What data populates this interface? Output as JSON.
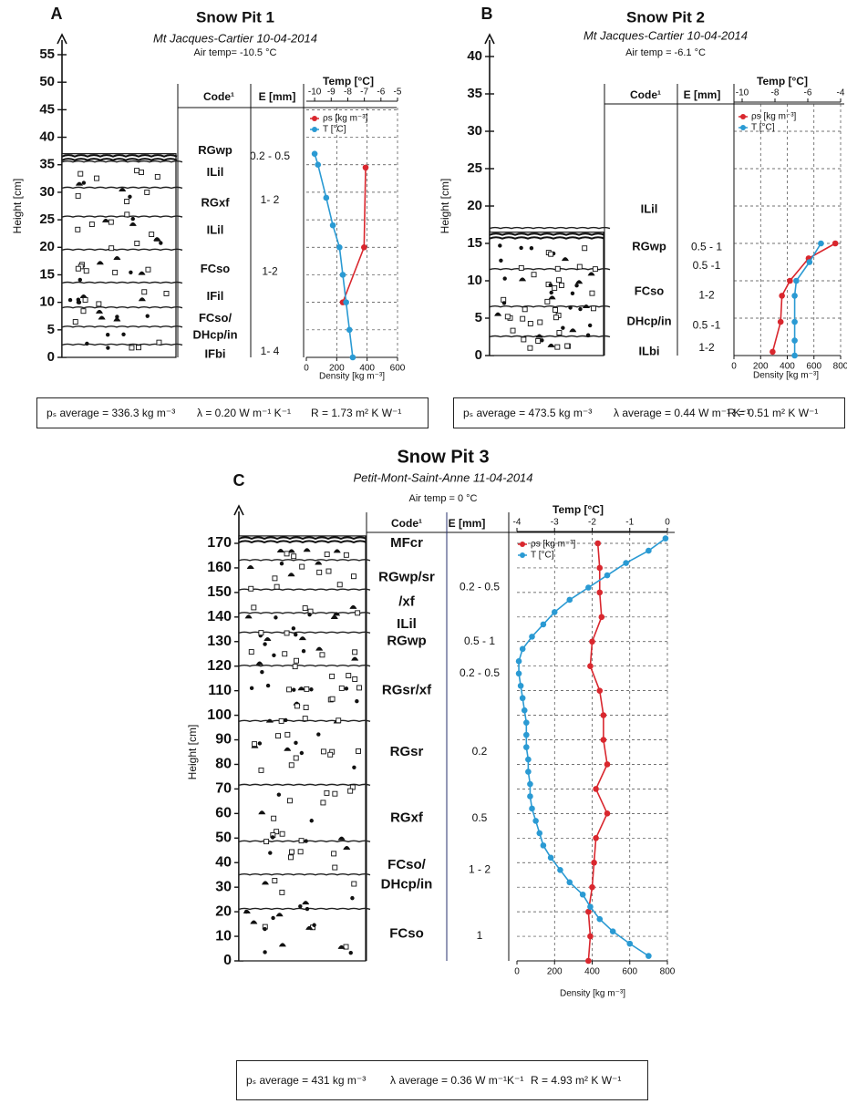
{
  "panels": [
    {
      "letter": "A",
      "title": "Snow Pit 1",
      "location": "Mt Jacques-Cartier 10-04-2014",
      "air_temp": "Air temp= -10.5 °C",
      "summary": {
        "density": "pₛ average = 336.3 kg m⁻³",
        "conductivity": "λ = 0.20 W m⁻¹ K⁻¹",
        "resistance": "R = 1.73 m² K W⁻¹"
      }
    },
    {
      "letter": "B",
      "title": "Snow Pit 2",
      "location": "Mt Jacques-Cartier 10-04-2014",
      "air_temp": "Air temp = -6.1 °C",
      "summary": {
        "density": "pₛ average = 473.5 kg m⁻³",
        "conductivity": "λ average = 0.44 W m⁻¹ K⁻¹",
        "resistance": "R = 0.51 m² K W⁻¹"
      }
    },
    {
      "letter": "C",
      "title": "Snow Pit 3",
      "location": "Petit-Mont-Saint-Anne 11-04-2014",
      "air_temp": "Air temp = 0 °C",
      "summary": {
        "density": "pₛ average = 431 kg m⁻³",
        "conductivity": "λ average = 0.36 W m⁻¹K⁻¹",
        "resistance": "R = 4.93 m² K W⁻¹"
      }
    }
  ],
  "column_headers": {
    "code": "Code¹",
    "e": "E [mm]",
    "temp": "Temp [°C]"
  },
  "axis_labels": {
    "height": "Height [cm]",
    "density": "Density [kg m⁻³]"
  },
  "legend": {
    "density": "ρs [kg m⁻³]",
    "temp": "T [°C]"
  },
  "colors": {
    "density": "#d9272e",
    "temp": "#2a9ad3",
    "text": "#111111"
  },
  "chart_data": [
    {
      "type": "line",
      "title": "Snow Pit 1",
      "ylabel": "Height [cm]",
      "ylim": [
        0,
        55
      ],
      "yticks": [
        0,
        5,
        10,
        15,
        20,
        25,
        30,
        35,
        40,
        45,
        50,
        55
      ],
      "snow_top": 37,
      "density_axis": {
        "label": "Density [kg m⁻³]",
        "lim": [
          0,
          600
        ],
        "ticks": [
          0,
          200,
          400,
          600
        ]
      },
      "temp_axis": {
        "label": "Temp [°C]",
        "lim": [
          -10.5,
          -5
        ],
        "ticks": [
          -10,
          -9,
          -8,
          -7,
          -6,
          -5
        ]
      },
      "layers": [
        {
          "code": "RGwp",
          "code_h": 37.5,
          "e": "0.2 - 0.5",
          "e_h": 36.5
        },
        {
          "code": "ILil",
          "code_h": 33.5
        },
        {
          "code": "RGxf",
          "code_h": 28,
          "e": "1- 2",
          "e_h": 28.5
        },
        {
          "code": "ILil",
          "code_h": 23
        },
        {
          "code": "FCso",
          "code_h": 16,
          "e": "1-2",
          "e_h": 15.5
        },
        {
          "code": "IFil",
          "code_h": 11
        },
        {
          "code": "FCso/",
          "code_h": 7
        },
        {
          "code": "DHcp/in",
          "code_h": 4
        },
        {
          "code": "IFbi",
          "code_h": 0.5,
          "e": "1- 4",
          "e_h": 1
        }
      ],
      "series": [
        {
          "name": "ρs [kg m⁻³]",
          "axis": "density",
          "h": [
            34.5,
            20,
            10
          ],
          "v": [
            390,
            380,
            240
          ]
        },
        {
          "name": "T [°C]",
          "axis": "temp",
          "h": [
            37,
            35,
            29,
            24,
            20,
            15,
            10,
            5,
            0
          ],
          "v": [
            -10,
            -9.8,
            -9.3,
            -8.9,
            -8.5,
            -8.3,
            -8.1,
            -7.9,
            -7.7
          ]
        }
      ]
    },
    {
      "type": "line",
      "title": "Snow Pit 2",
      "ylabel": "Height [cm]",
      "ylim": [
        0,
        40
      ],
      "yticks": [
        0,
        5,
        10,
        15,
        20,
        25,
        30,
        35,
        40
      ],
      "snow_top": 16.5,
      "density_axis": {
        "label": "Density [kg m⁻³]",
        "lim": [
          0,
          800
        ],
        "ticks": [
          0,
          200,
          400,
          600,
          800
        ]
      },
      "temp_axis": {
        "label": "Temp [°C]",
        "lim": [
          -10.5,
          -4
        ],
        "ticks": [
          -10,
          -8,
          -6,
          -4
        ]
      },
      "layers": [
        {
          "code": "ILil",
          "code_h": 19.5
        },
        {
          "code": "RGwp",
          "code_h": 14.5,
          "e": "0.5 - 1",
          "e_h": 14.5
        },
        {
          "code": "FCso",
          "code_h": 8.5,
          "e": "0.5 -1",
          "e_h": 12
        },
        {
          "code": "DHcp/in",
          "code_h": 4.5,
          "e": "1-2",
          "e_h": 8
        },
        {
          "code": "ILbi",
          "code_h": 0.5,
          "e": "0.5 -1",
          "e_h": 4,
          "e2": "1-2",
          "e2_h": 1
        }
      ],
      "series": [
        {
          "name": "ρs [kg m⁻³]",
          "axis": "density",
          "h": [
            15,
            13,
            10,
            8,
            4.5,
            0.5
          ],
          "v": [
            760,
            560,
            420,
            360,
            350,
            290
          ]
        },
        {
          "name": "T [°C]",
          "axis": "temp",
          "h": [
            15,
            12.5,
            10,
            8,
            4.5,
            2,
            0
          ],
          "v": [
            -5.2,
            -5.9,
            -6.7,
            -6.8,
            -6.8,
            -6.8,
            -6.8
          ]
        }
      ]
    },
    {
      "type": "line",
      "title": "Snow Pit 3",
      "ylabel": "Height [cm]",
      "ylim": [
        0,
        177
      ],
      "yticks": [
        0,
        10,
        20,
        30,
        40,
        50,
        60,
        70,
        80,
        90,
        100,
        110,
        120,
        130,
        140,
        150,
        160,
        170
      ],
      "snow_top": 173,
      "density_axis": {
        "label": "Density [kg m⁻³]",
        "lim": [
          0,
          800
        ],
        "ticks": [
          0,
          200,
          400,
          600,
          800
        ]
      },
      "temp_axis": {
        "label": "Temp [°C]",
        "lim": [
          -4,
          0
        ],
        "ticks": [
          -4,
          -3,
          -2,
          -1,
          0
        ]
      },
      "layers": [
        {
          "code": "MFcr",
          "code_h": 170
        },
        {
          "code": "RGwp/sr",
          "code_h": 156
        },
        {
          "code": "/xf",
          "code_h": 146,
          "e": "0.2 - 0.5",
          "e_h": 152
        },
        {
          "code": "ILil",
          "code_h": 137
        },
        {
          "code": "RGwp",
          "code_h": 130,
          "e": "0.5 - 1",
          "e_h": 130
        },
        {
          "code": "RGsr/xf",
          "code_h": 110,
          "e": "0.2 - 0.5",
          "e_h": 117
        },
        {
          "code": "RGsr",
          "code_h": 85,
          "e": "0.2",
          "e_h": 85
        },
        {
          "code": "RGxf",
          "code_h": 58,
          "e": "0.5",
          "e_h": 58
        },
        {
          "code": "FCso/",
          "code_h": 39
        },
        {
          "code": "DHcp/in",
          "code_h": 31,
          "e": "1 - 2",
          "e_h": 37
        },
        {
          "code": "FCso",
          "code_h": 11,
          "e": "1",
          "e_h": 10
        }
      ],
      "series": [
        {
          "name": "ρs [kg m⁻³]",
          "axis": "density",
          "h": [
            170,
            160,
            150,
            140,
            130,
            120,
            110,
            100,
            90,
            80,
            70,
            60,
            50,
            40,
            30,
            20,
            10,
            0
          ],
          "v": [
            430,
            440,
            440,
            450,
            400,
            390,
            440,
            460,
            460,
            480,
            420,
            480,
            420,
            410,
            400,
            380,
            390,
            380
          ]
        },
        {
          "name": "T [°C]",
          "axis": "temp",
          "h": [
            172,
            167,
            162,
            157,
            152,
            147,
            142,
            137,
            132,
            127,
            122,
            117,
            112,
            107,
            102,
            97,
            92,
            87,
            82,
            77,
            72,
            67,
            62,
            57,
            52,
            47,
            42,
            37,
            32,
            27,
            22,
            17,
            12,
            7,
            2
          ],
          "v": [
            -0.05,
            -0.5,
            -1.1,
            -1.6,
            -2.1,
            -2.6,
            -3.0,
            -3.3,
            -3.6,
            -3.85,
            -3.95,
            -3.95,
            -3.9,
            -3.85,
            -3.8,
            -3.75,
            -3.75,
            -3.75,
            -3.7,
            -3.7,
            -3.65,
            -3.65,
            -3.6,
            -3.5,
            -3.4,
            -3.3,
            -3.1,
            -2.85,
            -2.6,
            -2.25,
            -2.05,
            -1.8,
            -1.45,
            -1.0,
            -0.5
          ]
        }
      ]
    }
  ]
}
